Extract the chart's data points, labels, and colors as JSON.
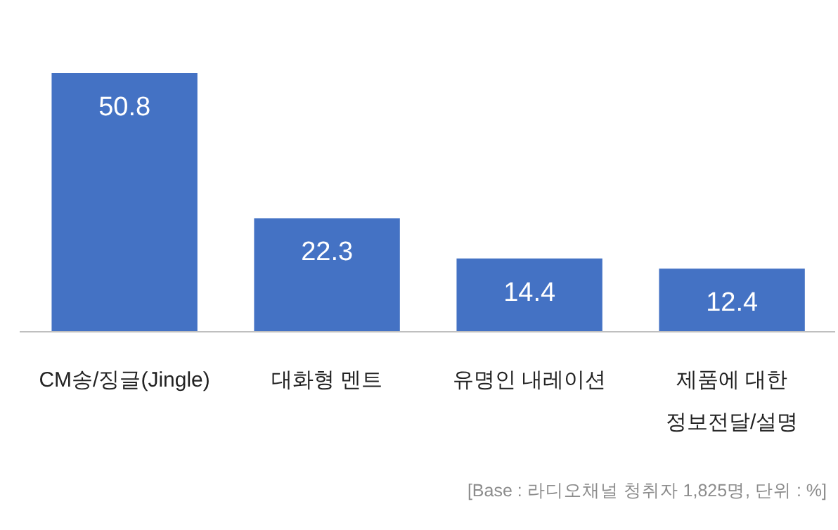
{
  "chart_data": {
    "type": "bar",
    "categories": [
      "CM송/징글(Jingle)",
      "대화형 멘트",
      "유명인 내레이션",
      "제품에 대한 정보전달/설명"
    ],
    "values": [
      50.8,
      22.3,
      14.4,
      12.4
    ],
    "color": "#4472c4",
    "data_labels": true,
    "annotations": [
      "[Base : 라디오채널 청취자 1,825명, 단위 : %]"
    ]
  }
}
